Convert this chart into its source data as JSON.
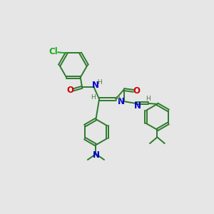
{
  "bg_color": "#e6e6e6",
  "bond_color": "#2d7a2d",
  "N_color": "#0000cc",
  "O_color": "#cc0000",
  "Cl_color": "#22aa22",
  "H_color": "#4a7a4a",
  "lw": 1.4,
  "fs": 8.5,
  "sfs": 6.5,
  "xlim": [
    0,
    10
  ],
  "ylim": [
    0,
    10
  ]
}
